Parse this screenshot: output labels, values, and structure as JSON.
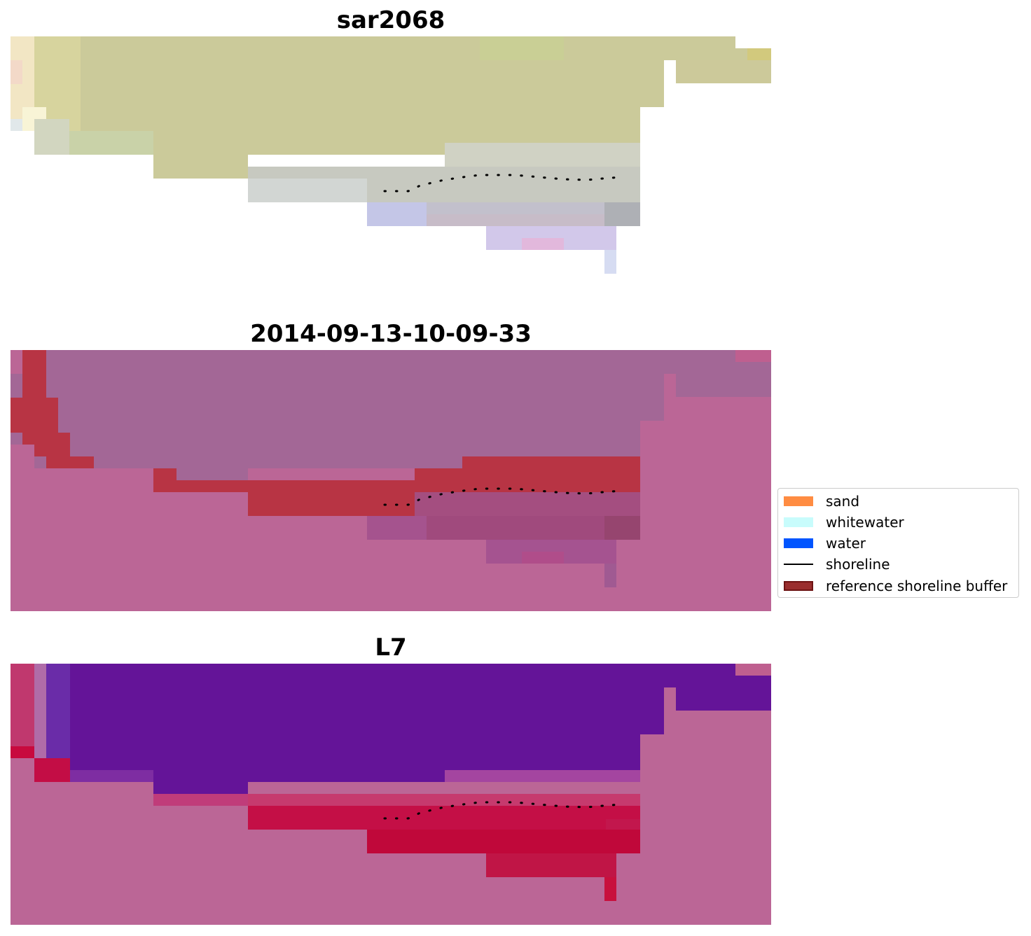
{
  "panels": [
    {
      "title": "sar2068"
    },
    {
      "title": "2014-09-13-10-09-33"
    },
    {
      "title": "L7"
    }
  ],
  "legend": {
    "items": [
      {
        "label": "sand",
        "color": "#ff8c42",
        "kind": "patch"
      },
      {
        "label": "whitewater",
        "color": "#c8fcfc",
        "kind": "patch"
      },
      {
        "label": "water",
        "color": "#0055ff",
        "kind": "patch"
      },
      {
        "label": "shoreline",
        "color": "#000000",
        "kind": "line"
      },
      {
        "label": "reference shoreline buffer",
        "color": "#9a2e2e",
        "kind": "patch"
      }
    ]
  },
  "colors": {
    "rgb_sand": "#cbca9a",
    "rgb_water": "#bcbcdc",
    "class_background": "#bb6696",
    "class_land": "#a36796",
    "class_buffer": "#b83444",
    "index_land": "#641498",
    "index_water": "#c00a3c",
    "shoreline": "#000000"
  }
}
